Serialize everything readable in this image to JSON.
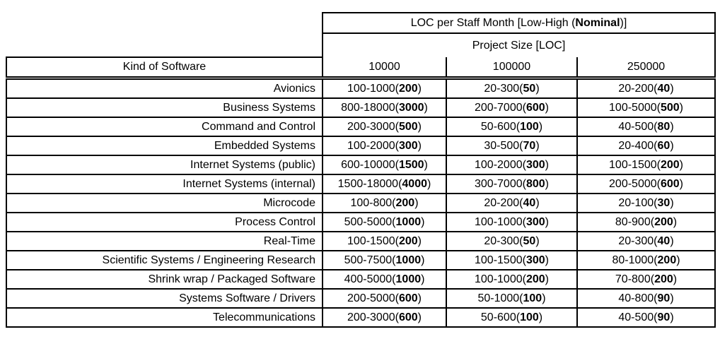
{
  "header": {
    "title_prefix": "LOC per Staff Month [Low-High (",
    "title_bold": "Nominal",
    "title_suffix": ")]",
    "project_size_label": "Project Size [LOC]",
    "kind_label": "Kind of Software"
  },
  "colors": {
    "border": "#000000",
    "background": "#ffffff",
    "text": "#000000"
  },
  "chart_data": {
    "type": "table",
    "title": "LOC per Staff Month [Low-High (Nominal)]",
    "subtitle": "Project Size [LOC]",
    "row_header": "Kind of Software",
    "columns": [
      "10000",
      "100000",
      "250000"
    ],
    "rows": [
      {
        "kind": "Avionics",
        "cells": [
          {
            "range": "100-1000",
            "nominal": "200"
          },
          {
            "range": "20-300",
            "nominal": "50"
          },
          {
            "range": "20-200",
            "nominal": "40"
          }
        ]
      },
      {
        "kind": "Business Systems",
        "cells": [
          {
            "range": "800-18000",
            "nominal": "3000"
          },
          {
            "range": "200-7000",
            "nominal": "600"
          },
          {
            "range": "100-5000",
            "nominal": "500"
          }
        ]
      },
      {
        "kind": "Command and Control",
        "cells": [
          {
            "range": "200-3000",
            "nominal": "500"
          },
          {
            "range": "50-600",
            "nominal": "100"
          },
          {
            "range": "40-500",
            "nominal": "80"
          }
        ]
      },
      {
        "kind": "Embedded Systems",
        "cells": [
          {
            "range": "100-2000",
            "nominal": "300"
          },
          {
            "range": "30-500",
            "nominal": "70"
          },
          {
            "range": "20-400",
            "nominal": "60"
          }
        ]
      },
      {
        "kind": "Internet Systems (public)",
        "cells": [
          {
            "range": "600-10000",
            "nominal": "1500"
          },
          {
            "range": "100-2000",
            "nominal": "300"
          },
          {
            "range": "100-1500",
            "nominal": "200"
          }
        ]
      },
      {
        "kind": "Internet Systems (internal)",
        "cells": [
          {
            "range": "1500-18000",
            "nominal": "4000"
          },
          {
            "range": "300-7000",
            "nominal": "800"
          },
          {
            "range": "200-5000",
            "nominal": "600"
          }
        ]
      },
      {
        "kind": "Microcode",
        "cells": [
          {
            "range": "100-800",
            "nominal": "200"
          },
          {
            "range": "20-200",
            "nominal": "40"
          },
          {
            "range": "20-100",
            "nominal": "30"
          }
        ]
      },
      {
        "kind": "Process Control",
        "cells": [
          {
            "range": "500-5000",
            "nominal": "1000"
          },
          {
            "range": "100-1000",
            "nominal": "300"
          },
          {
            "range": "80-900",
            "nominal": "200"
          }
        ]
      },
      {
        "kind": "Real-Time",
        "cells": [
          {
            "range": "100-1500",
            "nominal": "200"
          },
          {
            "range": "20-300",
            "nominal": "50"
          },
          {
            "range": "20-300",
            "nominal": "40"
          }
        ]
      },
      {
        "kind": "Scientific Systems / Engineering Research",
        "cells": [
          {
            "range": "500-7500",
            "nominal": "1000"
          },
          {
            "range": "100-1500",
            "nominal": "300"
          },
          {
            "range": "80-1000",
            "nominal": "200"
          }
        ]
      },
      {
        "kind": "Shrink wrap / Packaged Software",
        "cells": [
          {
            "range": "400-5000",
            "nominal": "1000"
          },
          {
            "range": "100-1000",
            "nominal": "200"
          },
          {
            "range": "70-800",
            "nominal": "200"
          }
        ]
      },
      {
        "kind": "Systems Software / Drivers",
        "cells": [
          {
            "range": "200-5000",
            "nominal": "600"
          },
          {
            "range": "50-1000",
            "nominal": "100"
          },
          {
            "range": "40-800",
            "nominal": "90"
          }
        ]
      },
      {
        "kind": "Telecommunications",
        "cells": [
          {
            "range": "200-3000",
            "nominal": "600"
          },
          {
            "range": "50-600",
            "nominal": "100"
          },
          {
            "range": "40-500",
            "nominal": "90"
          }
        ]
      }
    ]
  }
}
